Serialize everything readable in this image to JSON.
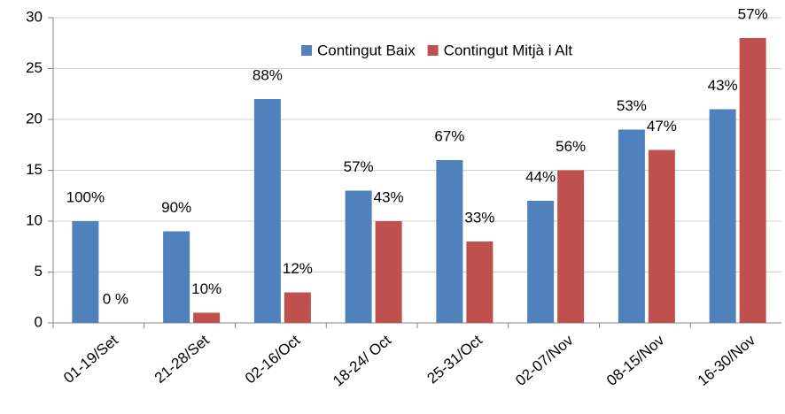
{
  "chart_data": {
    "type": "bar",
    "categories": [
      "01-19/Set",
      "21-28/Set",
      "02-16/Oct",
      "18-24/ Oct",
      "25-31/Oct",
      "02-07/Nov",
      "08-15/Nov",
      "16-30/Nov"
    ],
    "series": [
      {
        "name": "Contingut Baix",
        "color": "#4f81bd",
        "values": [
          10,
          9,
          22,
          13,
          16,
          12,
          19,
          21
        ],
        "annotations": [
          "100%",
          "90%",
          "88%",
          "57%",
          "67%",
          "44%",
          "53%",
          "43%"
        ]
      },
      {
        "name": "Contingut Mitjà i Alt",
        "color": "#c0504d",
        "values": [
          0,
          1,
          3,
          10,
          8,
          15,
          17,
          28
        ],
        "annotations": [
          "0 %",
          "10%",
          "12%",
          "43%",
          "33%",
          "56%",
          "47%",
          "57%"
        ]
      }
    ],
    "ylim": [
      0,
      30
    ],
    "yticks": [
      0,
      5,
      10,
      15,
      20,
      25,
      30
    ],
    "grid": true,
    "legend": "top"
  }
}
